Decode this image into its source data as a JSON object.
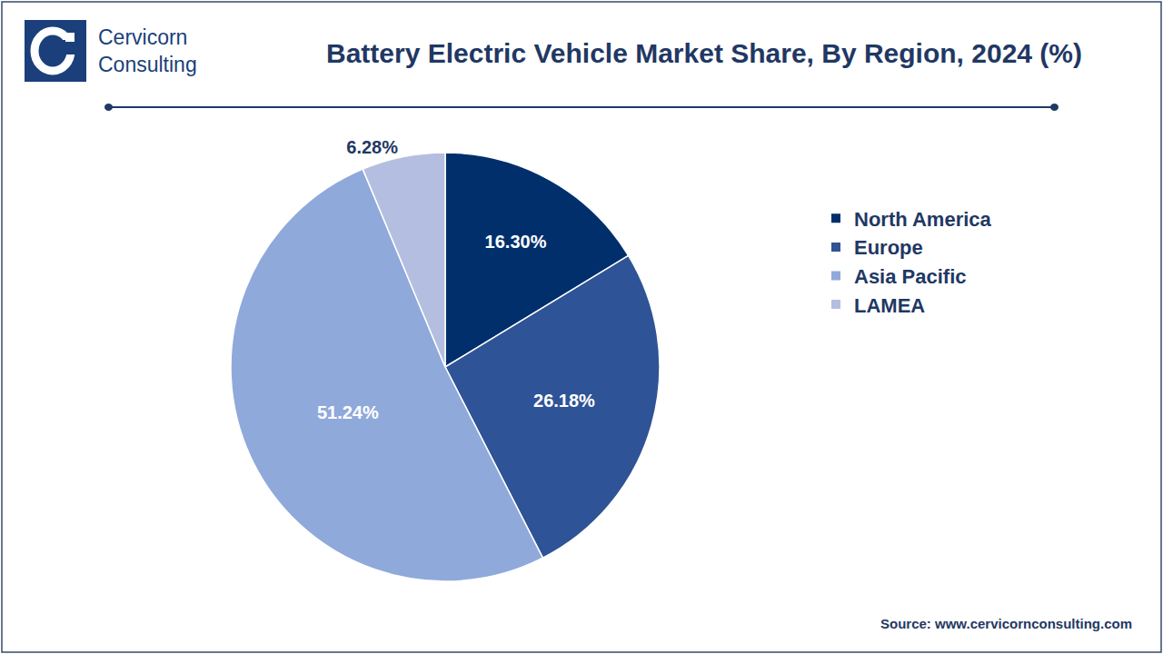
{
  "chart_data": {
    "type": "pie",
    "title": "Battery Electric Vehicle Market Share, By Region, 2024 (%)",
    "categories": [
      "North America",
      "Europe",
      "Asia Pacific",
      "LAMEA"
    ],
    "values": [
      16.3,
      26.18,
      51.24,
      6.28
    ],
    "value_labels": [
      "16.30%",
      "26.18%",
      "51.24%",
      "6.28%"
    ],
    "colors": [
      "#002f6c",
      "#2e5396",
      "#90a9db",
      "#b4bee0"
    ],
    "data_labels": true,
    "legend": "right",
    "annotations": [
      "Cervicorn\nConsulting",
      "Source: www.cervicornconsulting.com"
    ]
  }
}
